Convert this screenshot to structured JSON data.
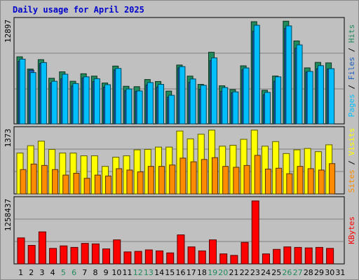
{
  "title": "Daily usage for April 2025",
  "colors": {
    "hits": "#228b5c",
    "files": "#1f5fbf",
    "pages": "#00bfff",
    "visits": "#ffff00",
    "sites": "#ff8c00",
    "kbytes": "#ff0000",
    "weekday_tick": "#000000",
    "weekend_tick": "#228b5c",
    "title": "#0000cc"
  },
  "chart_data": [
    {
      "type": "bar",
      "panel": "top",
      "max_label": "12897",
      "ylim": [
        0,
        12897
      ],
      "ylabel_parts": [
        {
          "text": "Pages",
          "color": "#00bfff"
        },
        {
          "text": " / ",
          "color": "#000000"
        },
        {
          "text": "Files",
          "color": "#1f5fbf"
        },
        {
          "text": " / ",
          "color": "#000000"
        },
        {
          "text": "Hits",
          "color": "#228b5c"
        }
      ],
      "categories": [
        "1",
        "2",
        "3",
        "4",
        "5",
        "6",
        "7",
        "8",
        "9",
        "10",
        "11",
        "12",
        "13",
        "14",
        "15",
        "16",
        "17",
        "18",
        "19",
        "20",
        "21",
        "22",
        "23",
        "24",
        "25",
        "26",
        "27",
        "28",
        "29",
        "30",
        "31"
      ],
      "series": [
        {
          "name": "Hits",
          "values": [
            8470,
            6920,
            8110,
            5760,
            6570,
            5380,
            6330,
            6030,
            5160,
            7300,
            4750,
            4700,
            5600,
            5350,
            4140,
            7430,
            6030,
            4990,
            9040,
            4810,
            4330,
            7330,
            12897,
            4250,
            6040,
            12960,
            10470,
            7070,
            7760,
            7700,
            0
          ]
        },
        {
          "name": "Files",
          "values": [
            7900,
            6780,
            7620,
            5160,
            5690,
            4780,
            5800,
            5340,
            4640,
            6810,
            4190,
            4110,
            4920,
            4670,
            3380,
            7070,
            5240,
            4380,
            7980,
            4100,
            3920,
            6820,
            11680,
            3690,
            5380,
            12040,
            9550,
            6550,
            6970,
            6920,
            0
          ]
        },
        {
          "name": "Pages",
          "values": [
            8170,
            6480,
            7740,
            5380,
            6270,
            5090,
            5940,
            5700,
            4950,
            7000,
            4410,
            4160,
            5220,
            4990,
            3610,
            7230,
            5670,
            4870,
            8330,
            4590,
            4040,
            7060,
            12450,
            3980,
            5940,
            12370,
            9970,
            6620,
            7350,
            6970,
            0
          ]
        }
      ]
    },
    {
      "type": "bar",
      "panel": "middle",
      "max_label": "1373",
      "ylim": [
        0,
        1373
      ],
      "ylabel_parts": [
        {
          "text": "Sites",
          "color": "#ff8c00"
        },
        {
          "text": " / ",
          "color": "#000000"
        },
        {
          "text": "Visits",
          "color": "#ffff00"
        }
      ],
      "categories": [
        "1",
        "2",
        "3",
        "4",
        "5",
        "6",
        "7",
        "8",
        "9",
        "10",
        "11",
        "12",
        "13",
        "14",
        "15",
        "16",
        "17",
        "18",
        "19",
        "20",
        "21",
        "22",
        "23",
        "24",
        "25",
        "26",
        "27",
        "28",
        "29",
        "30",
        "31"
      ],
      "series": [
        {
          "name": "Visits",
          "values": [
            890,
            1050,
            1150,
            970,
            890,
            890,
            830,
            830,
            600,
            800,
            830,
            960,
            970,
            1020,
            1020,
            1370,
            1200,
            1300,
            1390,
            1040,
            1060,
            1190,
            1390,
            1040,
            1140,
            880,
            960,
            990,
            920,
            1070,
            0
          ]
        },
        {
          "name": "Sites",
          "values": [
            530,
            650,
            620,
            530,
            410,
            450,
            340,
            410,
            390,
            550,
            520,
            480,
            600,
            600,
            630,
            780,
            700,
            750,
            790,
            600,
            580,
            620,
            840,
            540,
            560,
            440,
            600,
            550,
            520,
            660,
            0
          ]
        }
      ]
    },
    {
      "type": "bar",
      "panel": "bottom",
      "max_label": "1258437",
      "ylim": [
        0,
        1258437
      ],
      "ylabel_parts": [
        {
          "text": "KBytes",
          "color": "#ff0000"
        }
      ],
      "categories": [
        "1",
        "2",
        "3",
        "4",
        "5",
        "6",
        "7",
        "8",
        "9",
        "10",
        "11",
        "12",
        "13",
        "14",
        "15",
        "16",
        "17",
        "18",
        "19",
        "20",
        "21",
        "22",
        "23",
        "24",
        "25",
        "26",
        "27",
        "28",
        "29",
        "30",
        "31"
      ],
      "series": [
        {
          "name": "KBytes",
          "values": [
            520000,
            370000,
            640000,
            310000,
            360000,
            330000,
            410000,
            400000,
            300000,
            480000,
            240000,
            250000,
            280000,
            260000,
            220000,
            580000,
            340000,
            260000,
            480000,
            200000,
            170000,
            430000,
            1258437,
            200000,
            290000,
            340000,
            330000,
            320000,
            330000,
            310000,
            0
          ]
        }
      ]
    }
  ]
}
